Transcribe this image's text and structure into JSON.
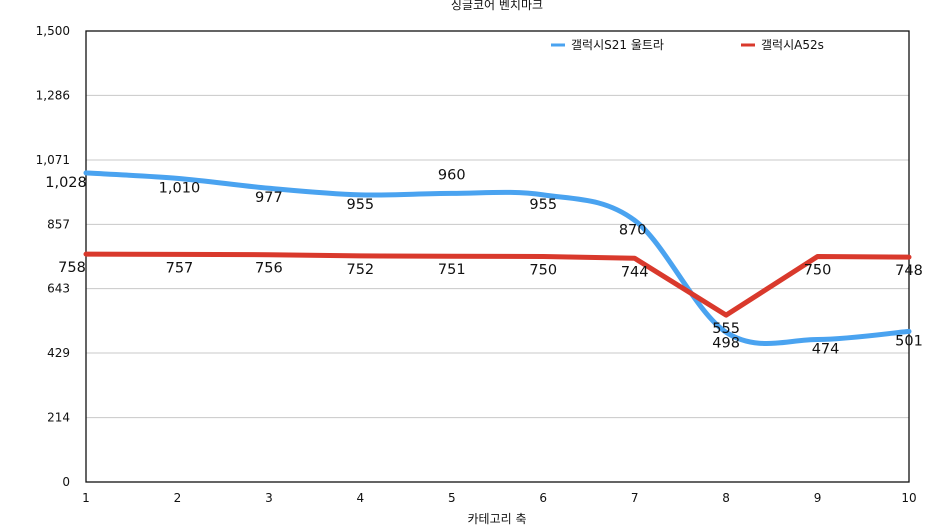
{
  "chart_data": {
    "type": "line",
    "title": "싱글코어 벤치마크",
    "xlabel": "카테고리 축",
    "ylabel": "",
    "categories": [
      "1",
      "2",
      "3",
      "4",
      "5",
      "6",
      "7",
      "8",
      "9",
      "10"
    ],
    "ylim": [
      0,
      1500
    ],
    "yticks": [
      "0",
      "214",
      "429",
      "643",
      "857",
      "1,071",
      "1,286",
      "1,500"
    ],
    "ytick_values": [
      0,
      214,
      429,
      643,
      857,
      1071,
      1286,
      1500
    ],
    "grid": true,
    "legend_position": "top-right",
    "series": [
      {
        "name": "갤럭시S21 울트라",
        "color": "#4aa3f0",
        "smooth": true,
        "values": [
          1028,
          1010,
          977,
          955,
          960,
          955,
          870,
          498,
          474,
          501
        ],
        "labels": [
          "1,028",
          "1,010",
          "977",
          "955",
          "960",
          "955",
          "870",
          "498",
          "474",
          "501"
        ]
      },
      {
        "name": "갤럭시A52s",
        "color": "#d9392c",
        "smooth": false,
        "values": [
          758,
          757,
          756,
          752,
          751,
          750,
          744,
          555,
          750,
          748
        ],
        "labels": [
          "758",
          "757",
          "756",
          "752",
          "751",
          "750",
          "744",
          "555",
          "750",
          "748"
        ]
      }
    ]
  }
}
